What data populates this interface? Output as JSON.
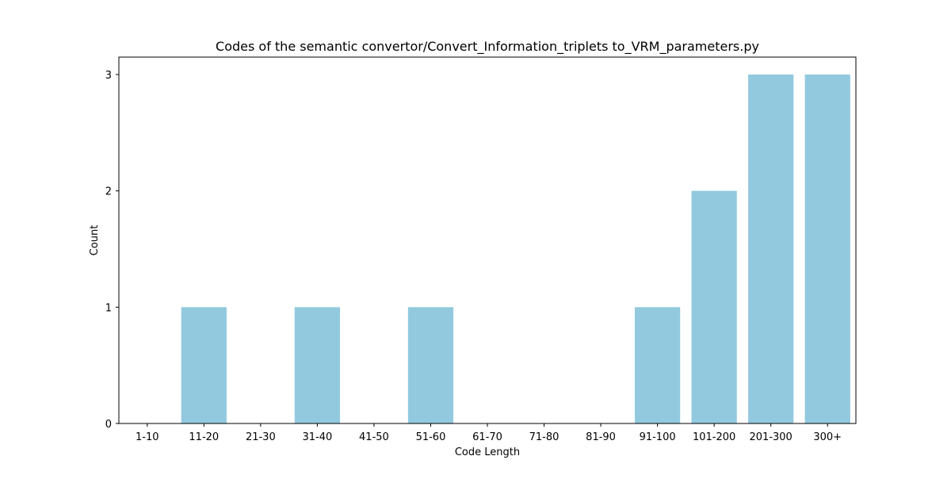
{
  "chart_data": {
    "type": "bar",
    "title": "Codes of the semantic convertor/Convert_Information_triplets to_VRM_parameters.py",
    "xlabel": "Code Length",
    "ylabel": "Count",
    "categories": [
      "1-10",
      "11-20",
      "21-30",
      "31-40",
      "41-50",
      "51-60",
      "61-70",
      "71-80",
      "81-90",
      "91-100",
      "101-200",
      "201-300",
      "300+"
    ],
    "values": [
      0,
      1,
      0,
      1,
      0,
      1,
      0,
      0,
      0,
      1,
      2,
      3,
      3
    ],
    "ylim": [
      0,
      3.15
    ],
    "yticks": [
      0,
      1,
      2,
      3
    ],
    "grid": false,
    "legend": false,
    "bar_color": "#92c9df"
  }
}
